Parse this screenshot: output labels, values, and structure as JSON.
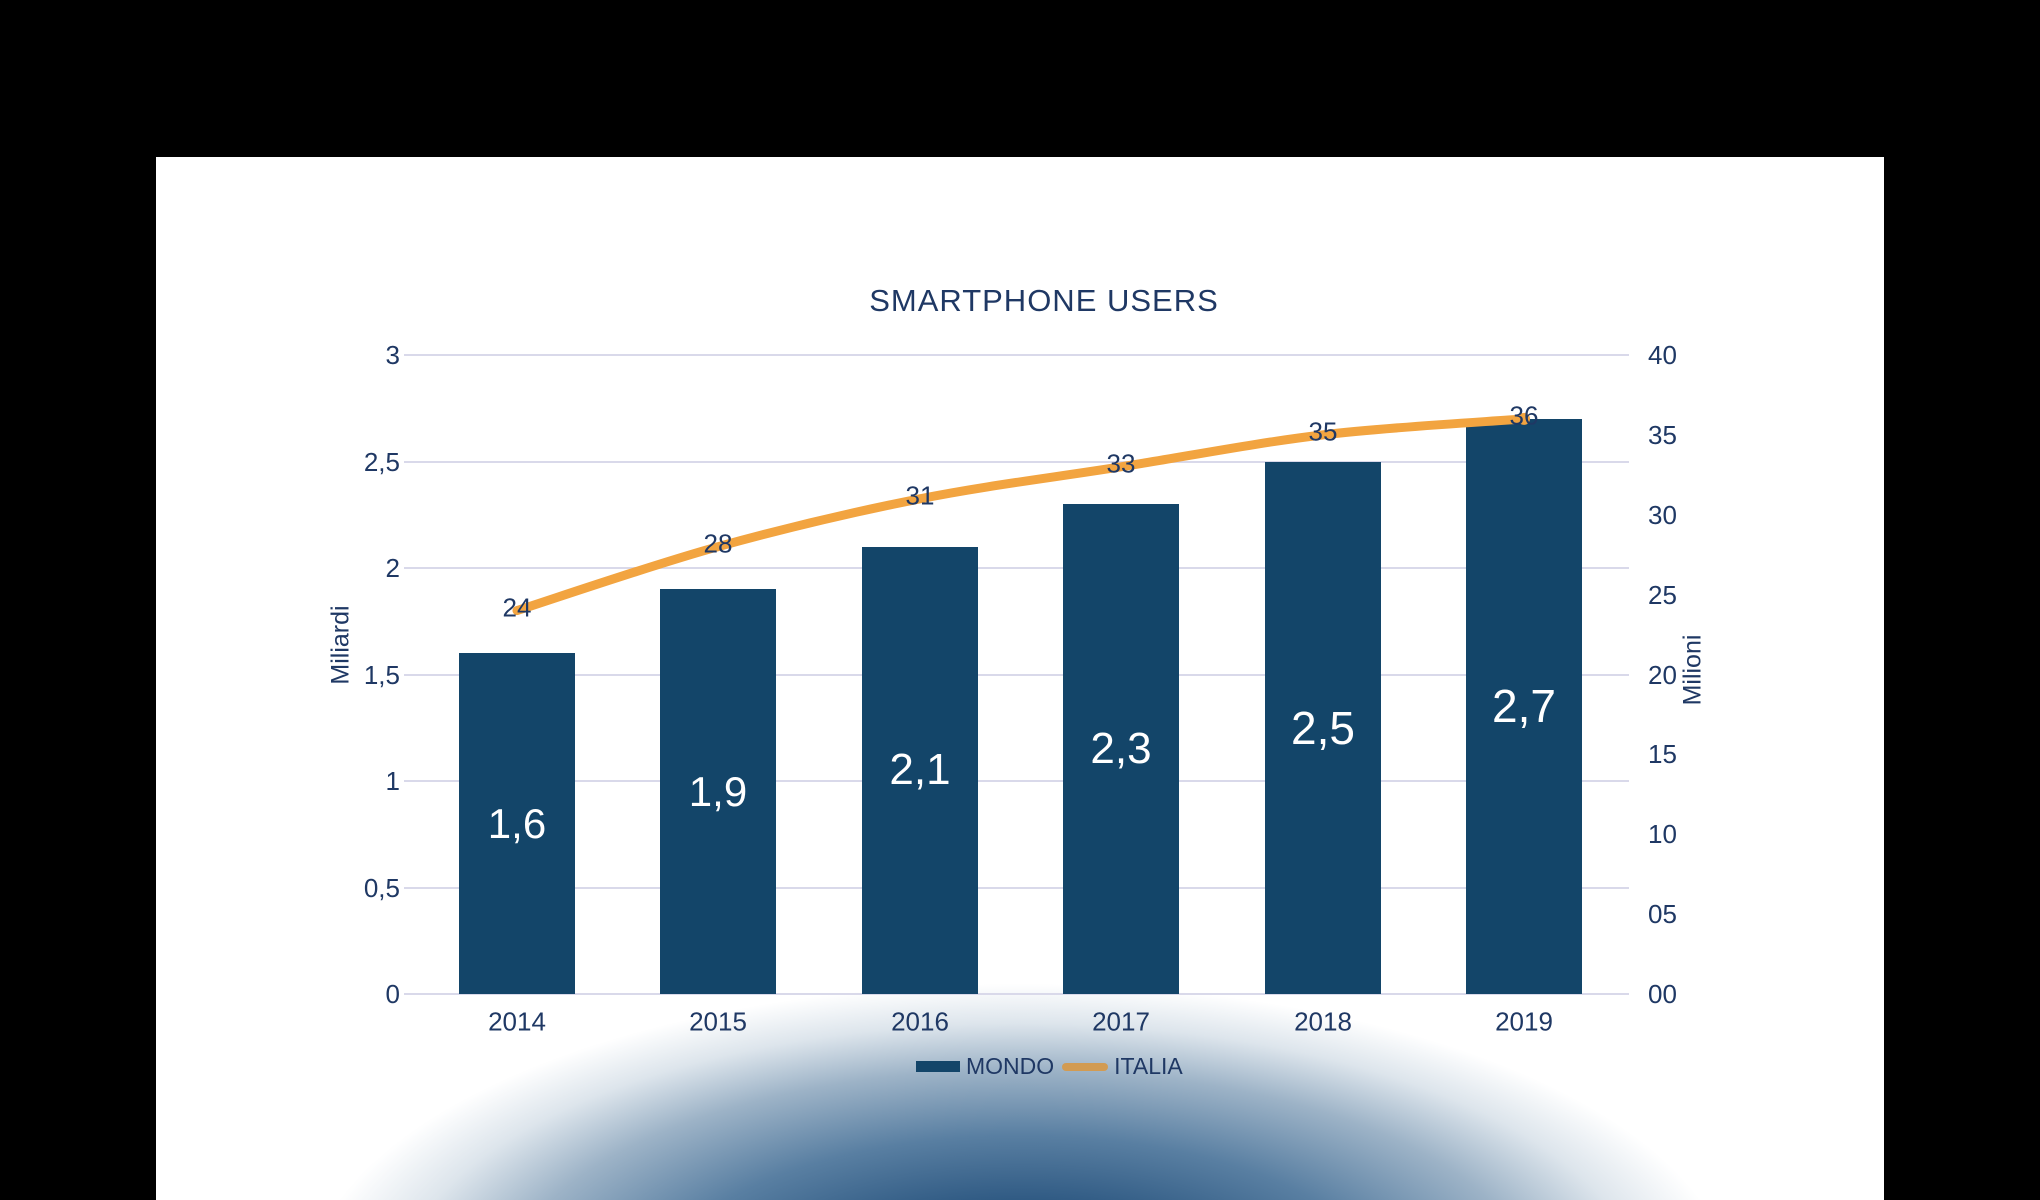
{
  "slide": {
    "background_color": "#FFFFFF",
    "frame_color": "#000000",
    "glow_color": "#16406A"
  },
  "chart": {
    "title": "SMARTPHONE USERS",
    "colors": {
      "bar": "#134569",
      "line": "#F2A440",
      "legend_line": "#D29B52",
      "text": "#1F3864",
      "grid": "#D9D9EA",
      "bar_label": "#FFFFFF"
    },
    "left_axis": {
      "title": "Miliardi",
      "ticks": [
        "3",
        "2,5",
        "2",
        "1,5",
        "1",
        "0,5",
        "0"
      ]
    },
    "right_axis": {
      "title": "Milioni",
      "ticks": [
        "40",
        "35",
        "30",
        "25",
        "20",
        "15",
        "10",
        "05",
        "00"
      ]
    },
    "legend": [
      {
        "label": "MONDO",
        "type": "bar"
      },
      {
        "label": "ITALIA",
        "type": "line"
      }
    ]
  },
  "chart_data": {
    "type": "combo",
    "title": "SMARTPHONE USERS",
    "categories": [
      "2014",
      "2015",
      "2016",
      "2017",
      "2018",
      "2019"
    ],
    "series": [
      {
        "name": "MONDO",
        "type": "bar",
        "axis": "left",
        "unit": "Miliardi",
        "values": [
          1.6,
          1.9,
          2.1,
          2.3,
          2.5,
          2.7
        ],
        "labels": [
          "1,6",
          "1,9",
          "2,1",
          "2,3",
          "2,5",
          "2,7"
        ]
      },
      {
        "name": "ITALIA",
        "type": "line",
        "axis": "right",
        "unit": "Milioni",
        "values": [
          24,
          28,
          31,
          33,
          35,
          36
        ],
        "labels": [
          "24",
          "28",
          "31",
          "33",
          "35",
          "36"
        ]
      }
    ],
    "ylabel_left": "Miliardi",
    "ylabel_right": "Milioni",
    "ylim_left": [
      0,
      3
    ],
    "ylim_right": [
      0,
      40
    ],
    "grid": true,
    "legend_position": "bottom"
  }
}
